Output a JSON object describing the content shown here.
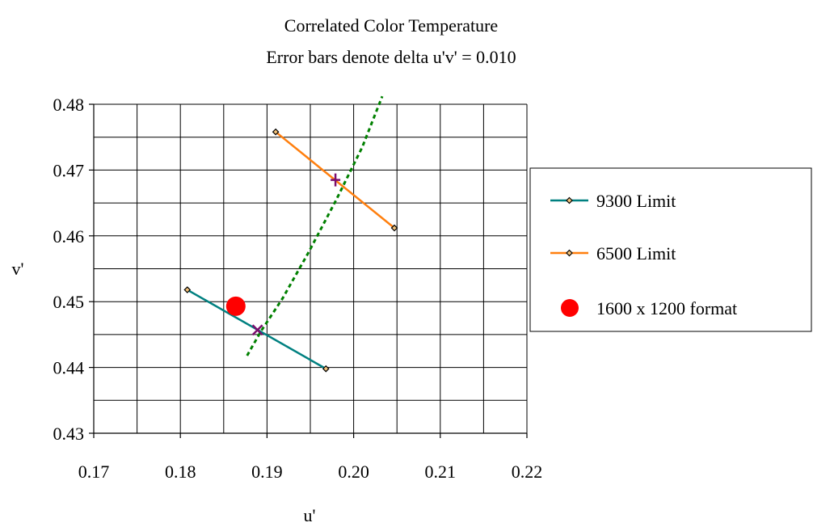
{
  "chart_data": {
    "type": "scatter",
    "title": "Correlated Color Temperature",
    "subtitle": "Error bars denote delta u'v' = 0.010",
    "xlabel": "u'",
    "ylabel": "v'",
    "xlim": [
      0.17,
      0.22
    ],
    "ylim": [
      0.43,
      0.48
    ],
    "x_ticks": [
      "0.17",
      "0.18",
      "0.19",
      "0.20",
      "0.21",
      "0.22"
    ],
    "y_ticks": [
      "0.43",
      "0.44",
      "0.45",
      "0.46",
      "0.47",
      "0.48"
    ],
    "grid": true,
    "legend_position": "right",
    "series": [
      {
        "name": "9300 Limit",
        "kind": "line",
        "color": "#008080",
        "marker": "diamond",
        "points": [
          [
            0.1808,
            0.4518
          ],
          [
            0.1968,
            0.4398
          ]
        ],
        "center": [
          0.1889,
          0.4457
        ],
        "center_marker": "x"
      },
      {
        "name": "6500 Limit",
        "kind": "line",
        "color": "#FF7F0E",
        "marker": "diamond",
        "points": [
          [
            0.191,
            0.4758
          ],
          [
            0.2047,
            0.4612
          ]
        ],
        "center": [
          0.1979,
          0.4685
        ],
        "center_marker": "plus"
      },
      {
        "name": "1600 x 1200 format",
        "kind": "point",
        "color": "#FF0000",
        "marker": "circle",
        "points": [
          [
            0.1864,
            0.4493
          ]
        ]
      }
    ],
    "locus": {
      "color": "#008000",
      "style": "dotted",
      "points": [
        [
          0.1877,
          0.4418
        ],
        [
          0.1893,
          0.4455
        ],
        [
          0.1918,
          0.4505
        ],
        [
          0.1948,
          0.4575
        ],
        [
          0.198,
          0.4655
        ],
        [
          0.201,
          0.4735
        ],
        [
          0.2033,
          0.4812
        ]
      ]
    },
    "center_marker_color": "#7B0D6E"
  }
}
